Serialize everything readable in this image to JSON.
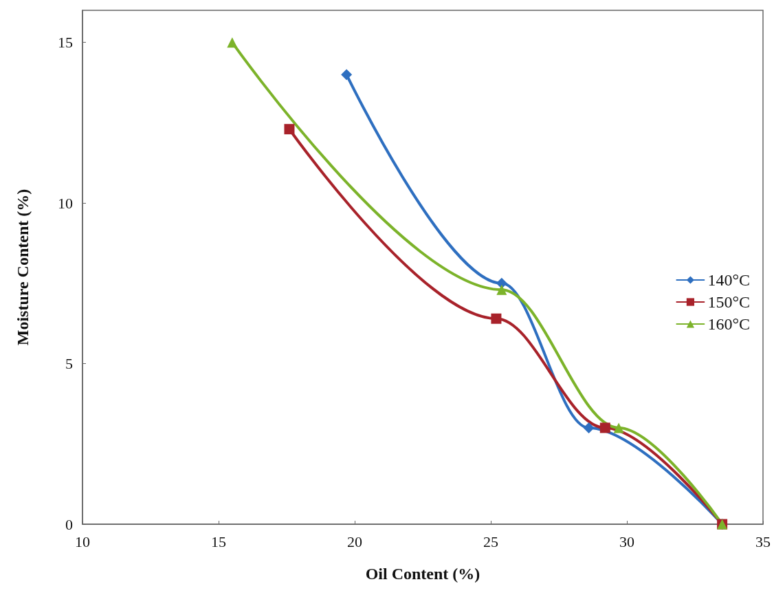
{
  "chart_data": {
    "type": "line",
    "xlabel": "Oil Content (%)",
    "ylabel": "Moisture Content (%)",
    "xlim": [
      10,
      35
    ],
    "xticks": [
      10,
      15,
      20,
      25,
      30,
      35
    ],
    "ylim": [
      0,
      16
    ],
    "yticks": [
      0,
      5,
      10,
      15
    ],
    "grid": false,
    "legend": "right",
    "line_style": "solid",
    "series": [
      {
        "name": "140°C",
        "color": "#2e6fc0",
        "marker": "diamond",
        "x": [
          19.7,
          25.4,
          28.6,
          33.5
        ],
        "values": [
          14,
          7.5,
          3,
          0
        ]
      },
      {
        "name": "150°C",
        "color": "#a8222a",
        "marker": "square",
        "x": [
          17.6,
          25.2,
          29.2,
          33.5
        ],
        "values": [
          12.3,
          6.4,
          3,
          0
        ]
      },
      {
        "name": "160°C",
        "color": "#7cb32a",
        "marker": "triangle",
        "x": [
          15.5,
          25.4,
          29.7,
          33.5
        ],
        "values": [
          15,
          7.3,
          3,
          0
        ]
      }
    ]
  }
}
